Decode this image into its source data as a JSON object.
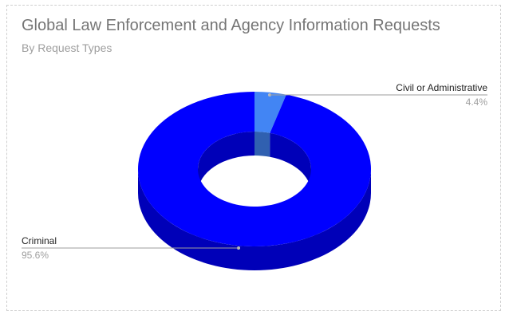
{
  "chart_data": {
    "type": "pie",
    "style": "donut-3d",
    "title": "Global Law Enforcement and Agency Information Requests",
    "subtitle": "By Request Types",
    "slices": [
      {
        "name": "Civil or Administrative",
        "value_label": "4.4%",
        "value": 4.4,
        "color": "#4285f4"
      },
      {
        "name": "Criminal",
        "value_label": "95.6%",
        "value": 95.6,
        "color": "#0000ff"
      }
    ]
  }
}
